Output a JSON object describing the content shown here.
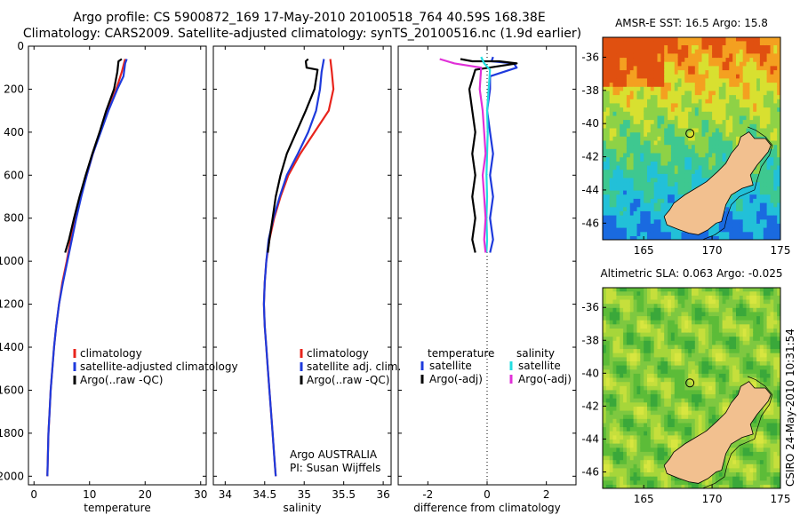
{
  "header": {
    "line1": "Argo profile: CS 5900872_169 17-May-2010 20100518_764 40.59S 168.38E",
    "line2": "Climatology: CARS2009. Satellite-adjusted climatology: synTS_20100516.nc (1.9d earlier)"
  },
  "colors": {
    "climatology": "#e8241c",
    "satellite": "#1e3adc",
    "argo": "#000000",
    "salinity_satellite": "#22dde0",
    "salinity_argo": "#e030d8",
    "land": "#f2c08f"
  },
  "chart_data": [
    {
      "type": "line",
      "panel": "temperature",
      "xlabel": "temperature",
      "ylabel": "",
      "xlim": [
        -1,
        31
      ],
      "ylim": [
        2040,
        0
      ],
      "y_reversed": true,
      "xticks": [
        0,
        10,
        20,
        30
      ],
      "yticks": [
        0,
        200,
        400,
        600,
        800,
        1000,
        1200,
        1400,
        1600,
        1800,
        2000
      ],
      "legend": {
        "placement": "lower-right",
        "entries": [
          "climatology",
          "satellite-adjusted climatology",
          "Argo(..raw -QC)"
        ]
      },
      "series": [
        {
          "name": "climatology",
          "color_key": "climatology",
          "points": [
            [
              16.4,
              60
            ],
            [
              15.8,
              120
            ],
            [
              14.8,
              200
            ],
            [
              13.3,
              300
            ],
            [
              11.9,
              400
            ],
            [
              10.6,
              500
            ],
            [
              9.5,
              600
            ],
            [
              8.4,
              700
            ],
            [
              7.5,
              800
            ],
            [
              6.6,
              900
            ],
            [
              5.9,
              1000
            ],
            [
              5.1,
              1100
            ],
            [
              4.5,
              1200
            ],
            [
              4.0,
              1300
            ],
            [
              3.6,
              1400
            ],
            [
              3.3,
              1500
            ],
            [
              3.0,
              1600
            ],
            [
              2.8,
              1700
            ],
            [
              2.6,
              1800
            ],
            [
              2.5,
              1900
            ],
            [
              2.4,
              2000
            ]
          ]
        },
        {
          "name": "satellite-adjusted climatology",
          "color_key": "satellite",
          "points": [
            [
              16.7,
              60
            ],
            [
              16.4,
              80
            ],
            [
              16.1,
              140
            ],
            [
              15.0,
              200
            ],
            [
              13.4,
              300
            ],
            [
              12.0,
              400
            ],
            [
              10.6,
              500
            ],
            [
              9.5,
              600
            ],
            [
              8.5,
              700
            ],
            [
              7.6,
              800
            ],
            [
              6.8,
              900
            ],
            [
              6.0,
              1000
            ],
            [
              5.2,
              1100
            ],
            [
              4.5,
              1200
            ],
            [
              4.0,
              1300
            ],
            [
              3.6,
              1400
            ],
            [
              3.3,
              1500
            ],
            [
              3.0,
              1600
            ],
            [
              2.8,
              1700
            ],
            [
              2.6,
              1800
            ],
            [
              2.5,
              1900
            ],
            [
              2.4,
              2000
            ]
          ]
        },
        {
          "name": "Argo(..raw -QC)",
          "color_key": "argo",
          "points": [
            [
              15.8,
              60
            ],
            [
              15.2,
              70
            ],
            [
              15.0,
              120
            ],
            [
              14.4,
              200
            ],
            [
              13.0,
              300
            ],
            [
              11.8,
              400
            ],
            [
              10.5,
              500
            ],
            [
              9.3,
              600
            ],
            [
              8.2,
              700
            ],
            [
              7.2,
              800
            ],
            [
              6.3,
              900
            ],
            [
              5.6,
              960
            ]
          ]
        }
      ]
    },
    {
      "type": "line",
      "panel": "salinity",
      "xlabel": "salinity",
      "ylabel": "",
      "xlim": [
        33.85,
        36.1
      ],
      "ylim": [
        2040,
        0
      ],
      "y_reversed": true,
      "xticks": [
        34,
        34.5,
        35,
        35.5,
        36
      ],
      "legend": {
        "placement": "lower-right",
        "entries": [
          "climatology",
          "satellite adj. clim.",
          "Argo(..raw -QC)"
        ]
      },
      "annotation": [
        "Argo AUSTRALIA",
        "PI: Susan Wijffels"
      ],
      "series": [
        {
          "name": "climatology",
          "color_key": "climatology",
          "points": [
            [
              35.33,
              60
            ],
            [
              35.35,
              120
            ],
            [
              35.37,
              200
            ],
            [
              35.31,
              300
            ],
            [
              35.13,
              400
            ],
            [
              34.95,
              500
            ],
            [
              34.8,
              600
            ],
            [
              34.7,
              700
            ],
            [
              34.62,
              800
            ],
            [
              34.56,
              900
            ],
            [
              34.52,
              1000
            ],
            [
              34.5,
              1100
            ],
            [
              34.49,
              1200
            ],
            [
              34.5,
              1300
            ],
            [
              34.52,
              1400
            ],
            [
              34.54,
              1500
            ],
            [
              34.56,
              1600
            ],
            [
              34.58,
              1700
            ],
            [
              34.6,
              1800
            ],
            [
              34.62,
              1900
            ],
            [
              34.64,
              2000
            ]
          ]
        },
        {
          "name": "satellite adj. clim.",
          "color_key": "satellite",
          "points": [
            [
              35.25,
              60
            ],
            [
              35.22,
              120
            ],
            [
              35.2,
              200
            ],
            [
              35.15,
              300
            ],
            [
              35.05,
              400
            ],
            [
              34.92,
              500
            ],
            [
              34.78,
              600
            ],
            [
              34.69,
              700
            ],
            [
              34.61,
              800
            ],
            [
              34.55,
              900
            ],
            [
              34.52,
              1000
            ],
            [
              34.5,
              1100
            ],
            [
              34.49,
              1200
            ],
            [
              34.5,
              1300
            ],
            [
              34.52,
              1400
            ],
            [
              34.54,
              1500
            ],
            [
              34.56,
              1600
            ],
            [
              34.58,
              1700
            ],
            [
              34.6,
              1800
            ],
            [
              34.62,
              1900
            ],
            [
              34.64,
              2000
            ]
          ]
        },
        {
          "name": "Argo(..raw -QC)",
          "color_key": "argo",
          "points": [
            [
              35.05,
              60
            ],
            [
              35.02,
              70
            ],
            [
              35.03,
              100
            ],
            [
              35.17,
              110
            ],
            [
              35.13,
              200
            ],
            [
              35.02,
              300
            ],
            [
              34.9,
              400
            ],
            [
              34.78,
              500
            ],
            [
              34.7,
              600
            ],
            [
              34.64,
              700
            ],
            [
              34.6,
              800
            ],
            [
              34.56,
              900
            ],
            [
              34.54,
              960
            ]
          ]
        }
      ]
    },
    {
      "type": "line",
      "panel": "difference",
      "xlabel": "difference from climatology",
      "ylabel": "",
      "xlim": [
        -3,
        3
      ],
      "ylim": [
        2040,
        0
      ],
      "y_reversed": true,
      "xticks": [
        -2,
        0,
        2
      ],
      "zero_line": "dotted",
      "legend": {
        "placement": "lower",
        "entries": [
          "temperature",
          "satellite",
          "Argo(-adj)",
          "salinity",
          "satellite",
          "Argo(-adj)"
        ]
      },
      "series": [
        {
          "name": "temperature satellite",
          "color_key": "satellite",
          "points": [
            [
              0.2,
              50
            ],
            [
              0.15,
              70
            ],
            [
              0.9,
              80
            ],
            [
              1.0,
              100
            ],
            [
              0.1,
              140
            ],
            [
              0.1,
              200
            ],
            [
              0.0,
              300
            ],
            [
              0.1,
              400
            ],
            [
              0.2,
              500
            ],
            [
              0.1,
              600
            ],
            [
              0.2,
              700
            ],
            [
              0.1,
              800
            ],
            [
              0.2,
              900
            ],
            [
              0.1,
              960
            ]
          ]
        },
        {
          "name": "temperature Argo(-adj)",
          "color_key": "argo",
          "points": [
            [
              -0.9,
              60
            ],
            [
              -0.5,
              70
            ],
            [
              0.4,
              70
            ],
            [
              1.0,
              80
            ],
            [
              -0.4,
              110
            ],
            [
              -0.6,
              200
            ],
            [
              -0.5,
              300
            ],
            [
              -0.4,
              400
            ],
            [
              -0.5,
              500
            ],
            [
              -0.4,
              600
            ],
            [
              -0.5,
              700
            ],
            [
              -0.4,
              800
            ],
            [
              -0.5,
              900
            ],
            [
              -0.4,
              960
            ]
          ]
        },
        {
          "name": "salinity satellite",
          "color_key": "salinity_satellite",
          "points": [
            [
              -0.2,
              50
            ],
            [
              -0.1,
              80
            ],
            [
              0.1,
              110
            ],
            [
              0.05,
              200
            ],
            [
              0.0,
              300
            ],
            [
              0.02,
              400
            ],
            [
              0.0,
              500
            ],
            [
              -0.02,
              600
            ],
            [
              0.0,
              700
            ],
            [
              -0.02,
              800
            ],
            [
              0.0,
              900
            ],
            [
              -0.02,
              960
            ]
          ]
        },
        {
          "name": "salinity Argo(-adj)",
          "color_key": "salinity_argo",
          "points": [
            [
              -1.6,
              60
            ],
            [
              -1.1,
              80
            ],
            [
              -0.2,
              100
            ],
            [
              -0.25,
              200
            ],
            [
              -0.15,
              300
            ],
            [
              -0.1,
              400
            ],
            [
              -0.05,
              500
            ],
            [
              -0.15,
              600
            ],
            [
              -0.1,
              700
            ],
            [
              -0.05,
              800
            ],
            [
              -0.1,
              900
            ],
            [
              -0.05,
              960
            ]
          ]
        }
      ]
    }
  ],
  "maps": [
    {
      "title": "AMSR-E SST: 16.5 Argo: 15.8",
      "variable": "sst",
      "lon_range": [
        162,
        175
      ],
      "lat_range": [
        -47,
        -34.8
      ],
      "xticks": [
        165,
        170,
        175
      ],
      "yticks": [
        -36,
        -38,
        -40,
        -42,
        -44,
        -46
      ],
      "float_position": {
        "lon": 168.38,
        "lat": -40.59
      }
    },
    {
      "title": "Altimetric SLA: 0.063 Argo: -0.025",
      "variable": "sla",
      "lon_range": [
        162,
        175
      ],
      "lat_range": [
        -47,
        -34.8
      ],
      "xticks": [
        165,
        170,
        175
      ],
      "yticks": [
        -36,
        -38,
        -40,
        -42,
        -44,
        -46
      ],
      "float_position": {
        "lon": 168.38,
        "lat": -40.59
      }
    }
  ],
  "footer": {
    "stamp": "CSIRO 24-May-2010 10:31:54"
  }
}
